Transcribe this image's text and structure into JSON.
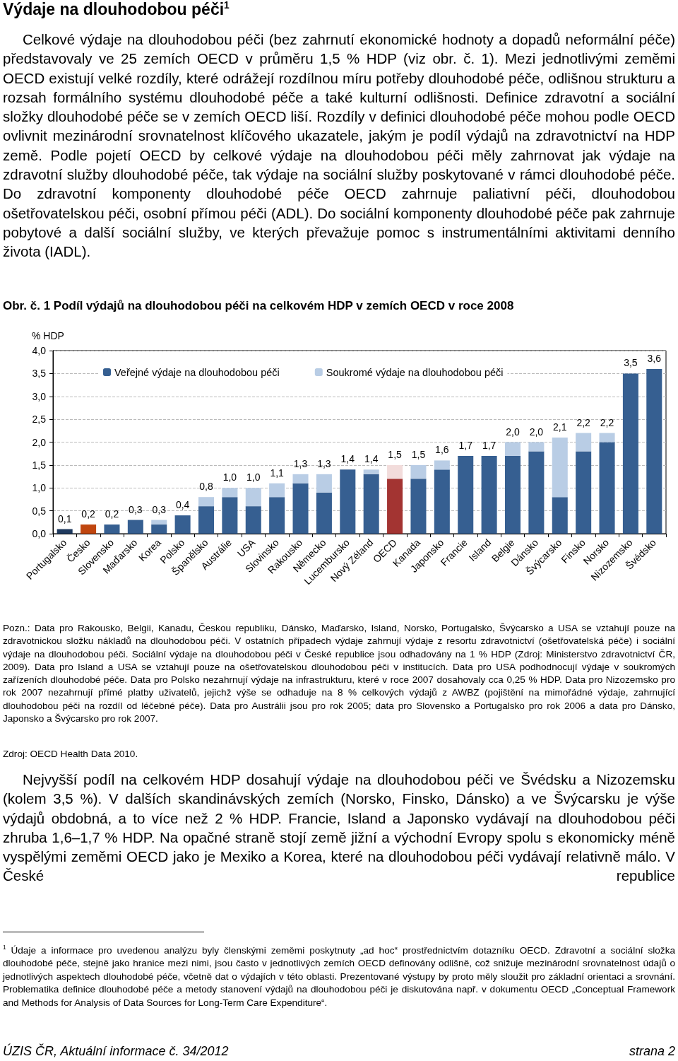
{
  "chart_data": {
    "type": "bar",
    "stacked": true,
    "title": "Obr. č. 1   Podíl výdajů na dlouhodobou péči na celkovém HDP v zemích OECD v roce 2008",
    "ylabel": "% HDP",
    "categories": [
      "Portugalsko",
      "Česko",
      "Slovensko",
      "Maďarsko",
      "Korea",
      "Polsko",
      "Španělsko",
      "Austrálie",
      "USA",
      "Slovinsko",
      "Rakousko",
      "Německo",
      "Lucembursko",
      "Nový Zéland",
      "OECD",
      "Kanada",
      "Japonsko",
      "Francie",
      "Island",
      "Belgie",
      "Dánsko",
      "Švýcarsko",
      "Finsko",
      "Norsko",
      "Nizozemsko",
      "Švédsko"
    ],
    "series": [
      {
        "name": "Veřejné výdaje na dlouhodobou péči",
        "color": "#365f91",
        "values": [
          0.1,
          0.2,
          0.2,
          0.3,
          0.2,
          0.4,
          0.6,
          0.8,
          0.6,
          0.8,
          1.1,
          0.9,
          1.4,
          1.3,
          1.2,
          1.2,
          1.4,
          1.7,
          1.7,
          1.7,
          1.8,
          0.8,
          1.8,
          2.0,
          3.5,
          3.6
        ],
        "colors": [
          "#1f3a5f",
          "#c0460f",
          "#365f91",
          "#365f91",
          "#365f91",
          "#365f91",
          "#365f91",
          "#365f91",
          "#365f91",
          "#365f91",
          "#365f91",
          "#365f91",
          "#365f91",
          "#365f91",
          "#a33432",
          "#365f91",
          "#365f91",
          "#365f91",
          "#365f91",
          "#365f91",
          "#365f91",
          "#365f91",
          "#365f91",
          "#365f91",
          "#365f91",
          "#365f91"
        ]
      },
      {
        "name": "Soukromé výdaje na dlouhodobou péči",
        "color": "#b9cde5",
        "values": [
          0,
          0,
          0,
          0,
          0.1,
          0,
          0.2,
          0.2,
          0.4,
          0.3,
          0.2,
          0.4,
          0,
          0.1,
          0.3,
          0.3,
          0.2,
          0,
          0,
          0.3,
          0.2,
          1.3,
          0.4,
          0.2,
          0,
          0
        ],
        "colors": [
          "#b9cde5",
          "#b9cde5",
          "#b9cde5",
          "#b9cde5",
          "#b9cde5",
          "#b9cde5",
          "#b9cde5",
          "#b9cde5",
          "#b9cde5",
          "#b9cde5",
          "#b9cde5",
          "#b9cde5",
          "#b9cde5",
          "#b9cde5",
          "#f2dcdb",
          "#b9cde5",
          "#b9cde5",
          "#b9cde5",
          "#b9cde5",
          "#b9cde5",
          "#b9cde5",
          "#b9cde5",
          "#b9cde5",
          "#b9cde5",
          "#b9cde5",
          "#b9cde5"
        ]
      }
    ],
    "totals": [
      "0,1",
      "0,2",
      "0,2",
      "0,3",
      "0,3",
      "0,4",
      "0,8",
      "1,0",
      "1,0",
      "1,1",
      "1,3",
      "1,3",
      "1,4",
      "1,4",
      "1,5",
      "1,5",
      "1,6",
      "1,7",
      "1,7",
      "2,0",
      "2,0",
      "2,1",
      "2,2",
      "2,2",
      "3,5",
      "3,6"
    ],
    "ylim": [
      0,
      4
    ],
    "yticks": [
      {
        "value": 0,
        "label": "0,0"
      },
      {
        "value": 0.5,
        "label": "0,5"
      },
      {
        "value": 1,
        "label": "1,0"
      },
      {
        "value": 1.5,
        "label": "1,5"
      },
      {
        "value": 2,
        "label": "2,0"
      },
      {
        "value": 2.5,
        "label": "2,5"
      },
      {
        "value": 3,
        "label": "3,0"
      },
      {
        "value": 3.5,
        "label": "3,5"
      },
      {
        "value": 4,
        "label": "4,0"
      }
    ],
    "grid": "y",
    "legend": "top",
    "annotations": [
      "Výdaje na dlouhodobou péči$^{1}$",
      "Celkové výdaje na dlouhodobou péči (bez zahrnutí ekonomické hodnoty a dopadů neformální péče) představovaly ve 25 zemích OECD v průměru 1,5 % HDP (viz obr. č. 1). Mezi jednotlivými zeměmi OECD existují velké rozdíly, které odrážejí rozdílnou míru potřeby dlouhodobé péče, odlišnou strukturu a rozsah formálního systému dlouhodobé péče a také kulturní odlišnosti. Definice zdravotní a sociální složky dlouhodobé péče se v zemích OECD liší. Rozdíly v definici dlouhodobé péče mohou podle OECD ovlivnit mezinárodní srovnatelnost klíčového ukazatele, jakým je podíl výdajů na zdravotnictví na HDP země. Podle pojetí OECD by celkové výdaje na dlouhodobou péči měly zahrnovat jak výdaje na zdravotní služby dlouhodobé péče, tak výdaje na sociální služby poskytované v rámci dlouhodobé péče. Do zdravotní komponenty dlouhodobé péče OECD zahrnuje paliativní péči, dlouhodobou ošetřovatelskou péči, osobní přímou péči (ADL). Do sociální komponenty dlouhodobé péče pak zahrnuje pobytové a další sociální služby, ve kterých převažuje pomoc s instrumentálními aktivitami denního života (IADL).",
      "Pozn.: Data pro Rakousko, Belgii, Kanadu, Českou republiku, Dánsko, Maďarsko, Island, Norsko, Portugalsko, Švýcarsko a USA se vztahují pouze na zdravotnickou složku nákladů na dlouhodobou péči. V ostatních případech výdaje zahrnují výdaje z resortu zdravotnictví (ošetřovatelská péče) i sociální výdaje na dlouhodobou péči. Sociální výdaje na dlouhodobou péči v České republice jsou odhadovány na 1 % HDP (Zdroj: Ministerstvo zdravotnictví ČR, 2009). Data pro Island a USA se vztahují pouze na ošetřovatelskou dlouhodobou péči v institucích. Data pro USA podhodnocují výdaje v soukromých zařízeních dlouhodobé péče. Data pro Polsko nezahrnují výdaje na infrastrukturu, které v roce 2007 dosahovaly cca 0,25 % HDP. Data pro Nizozemsko pro rok 2007 nezahrnují přímé platby uživatelů, jejichž výše se odhaduje na 8 % celkových výdajů z AWBZ (pojištění na mimořádné výdaje, zahrnující dlouhodobou péči na rozdíl od léčebné péče). Data pro Austrálii jsou pro rok 2005; data pro Slovensko a Portugalsko pro rok 2006 a data pro Dánsko, Japonsko a Švýcarsko pro rok 2007.",
      "Zdroj: OECD Health Data 2010.",
      "Nejvyšší podíl na celkovém HDP dosahují výdaje na dlouhodobou péči ve Švédsku a Nizozemsku (kolem 3,5 %). V dalších skandinávských zemích (Norsko, Finsko, Dánsko) a ve Švýcarsku je výše výdajů obdobná, a to více než 2 % HDP. Francie, Island a Japonsko vydávají na dlouhodobou péči zhruba 1,6–1,7 % HDP. Na opačné straně stojí země jižní a východní Evropy spolu s ekonomicky méně vyspělými zeměmi OECD jako je Mexiko a Korea, které na dlouhodobou péči vydávají relativně málo. V České republice",
      "$^{1}$ Údaje a informace pro uvedenou analýzu byly členskými zeměmi poskytnuty „ad hoc“ prostřednictvím dotazníku OECD. Zdravotní a sociální složka dlouhodobé péče, stejně jako hranice mezi nimi, jsou často v jednotlivých zemích OECD definovány odlišně, což snižuje mezinárodní srovnatelnost údajů o jednotlivých aspektech dlouhodobé péče, včetně dat o výdajích v této oblasti. Prezentované výstupy by proto měly sloužit pro základní orientaci a srovnání. Problematika definice dlouhodobé péče a metody stanovení výdajů na dlouhodobou péči je diskutována např. v dokumentu OECD „Conceptual Framework and Methods for Analysis of Data Sources for Long-Term Care Expenditure“.",
      "ÚZIS ČR, Aktuální informace č. 34/2012",
      "strana 2"
    ]
  }
}
